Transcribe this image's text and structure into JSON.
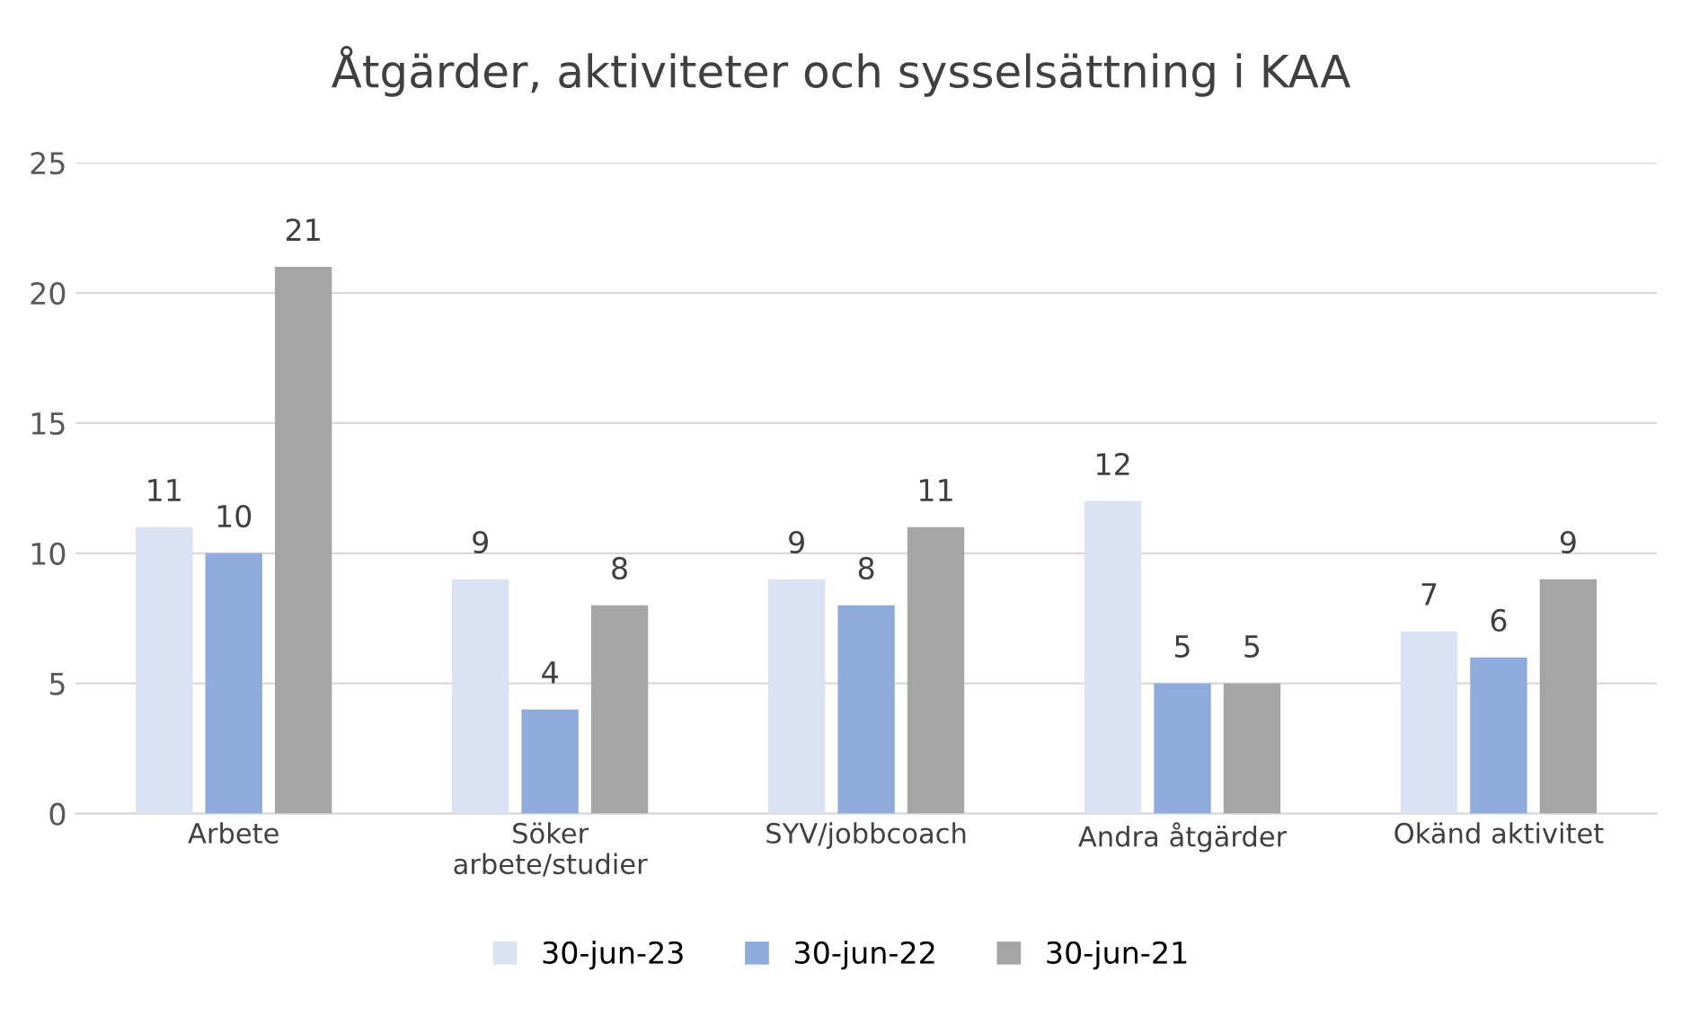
{
  "chart_data": {
    "type": "bar",
    "title": "Åtgärder, aktiviteter och sysselsättning i KAA",
    "categories": [
      "Arbete",
      "Söker\narbete/studier",
      "SYV/jobbcoach",
      "Andra åtgärder",
      "Okänd aktivitet"
    ],
    "series": [
      {
        "name": "30-jun-23",
        "color": "#dae3f3",
        "values": [
          11,
          9,
          9,
          12,
          7
        ]
      },
      {
        "name": "30-jun-22",
        "color": "#8faadc",
        "values": [
          10,
          4,
          8,
          5,
          6
        ]
      },
      {
        "name": "30-jun-21",
        "color": "#a5a5a5",
        "values": [
          21,
          8,
          11,
          5,
          9
        ]
      }
    ],
    "ylim": [
      0,
      25
    ],
    "yticks": [
      0,
      5,
      10,
      15,
      20,
      25
    ],
    "grid": "y",
    "legend": "bottom",
    "data_labels": true
  }
}
